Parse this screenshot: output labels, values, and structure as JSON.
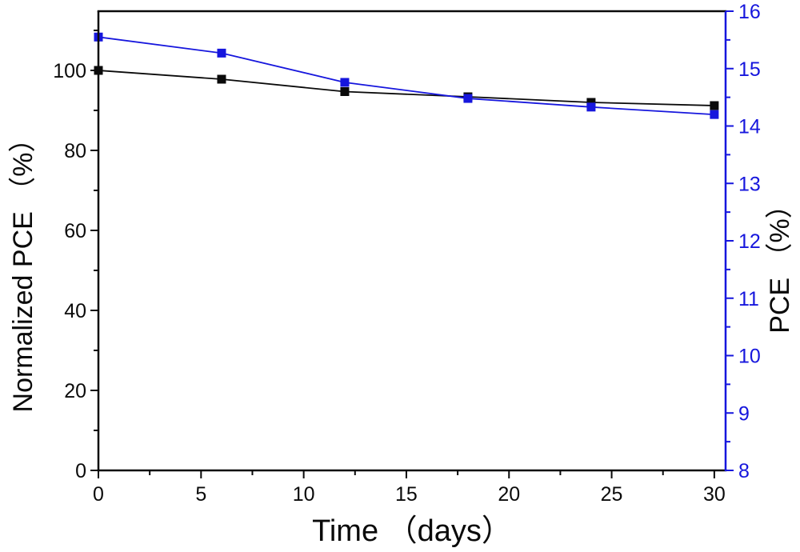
{
  "figure": {
    "background": "#ffffff",
    "kind": "dual-axis-line-chart"
  },
  "chart_data": {
    "type": "line",
    "title": "",
    "xlabel": "Time （days）",
    "ylabel_left": "Normalized PCE （%）",
    "ylabel_right": "PCE （%）",
    "x": [
      0,
      6,
      12,
      18,
      24,
      30
    ],
    "series": [
      {
        "name": "Normalized PCE",
        "axis": "left",
        "color": "#0a0a0a",
        "marker": "square",
        "values": [
          100,
          97.8,
          94.7,
          93.4,
          92.0,
          91.2
        ]
      },
      {
        "name": "PCE",
        "axis": "right",
        "color": "#1616dd",
        "marker": "square",
        "values": [
          15.55,
          15.27,
          14.76,
          14.48,
          14.33,
          14.2
        ]
      }
    ],
    "xlim": [
      0,
      30.55
    ],
    "left_lim": [
      0,
      114.8
    ],
    "right_lim": [
      8,
      16
    ],
    "x_ticks": [
      0,
      5,
      10,
      15,
      20,
      25,
      30
    ],
    "x_minor_step": 2.5,
    "left_ticks": [
      0,
      20,
      40,
      60,
      80,
      100
    ],
    "left_minor_step": 10,
    "right_ticks": [
      8,
      9,
      10,
      11,
      12,
      13,
      14,
      15,
      16
    ],
    "right_minor_step": 0.5,
    "grid": false,
    "legend": "none",
    "axis_colors": {
      "left": "#0a0a0a",
      "bottom": "#0a0a0a",
      "top": "#0a0a0a",
      "right": "#1616dd"
    },
    "tick_label_colors": {
      "x": "#0a0a0a",
      "left": "#0a0a0a",
      "right": "#1616dd"
    }
  }
}
